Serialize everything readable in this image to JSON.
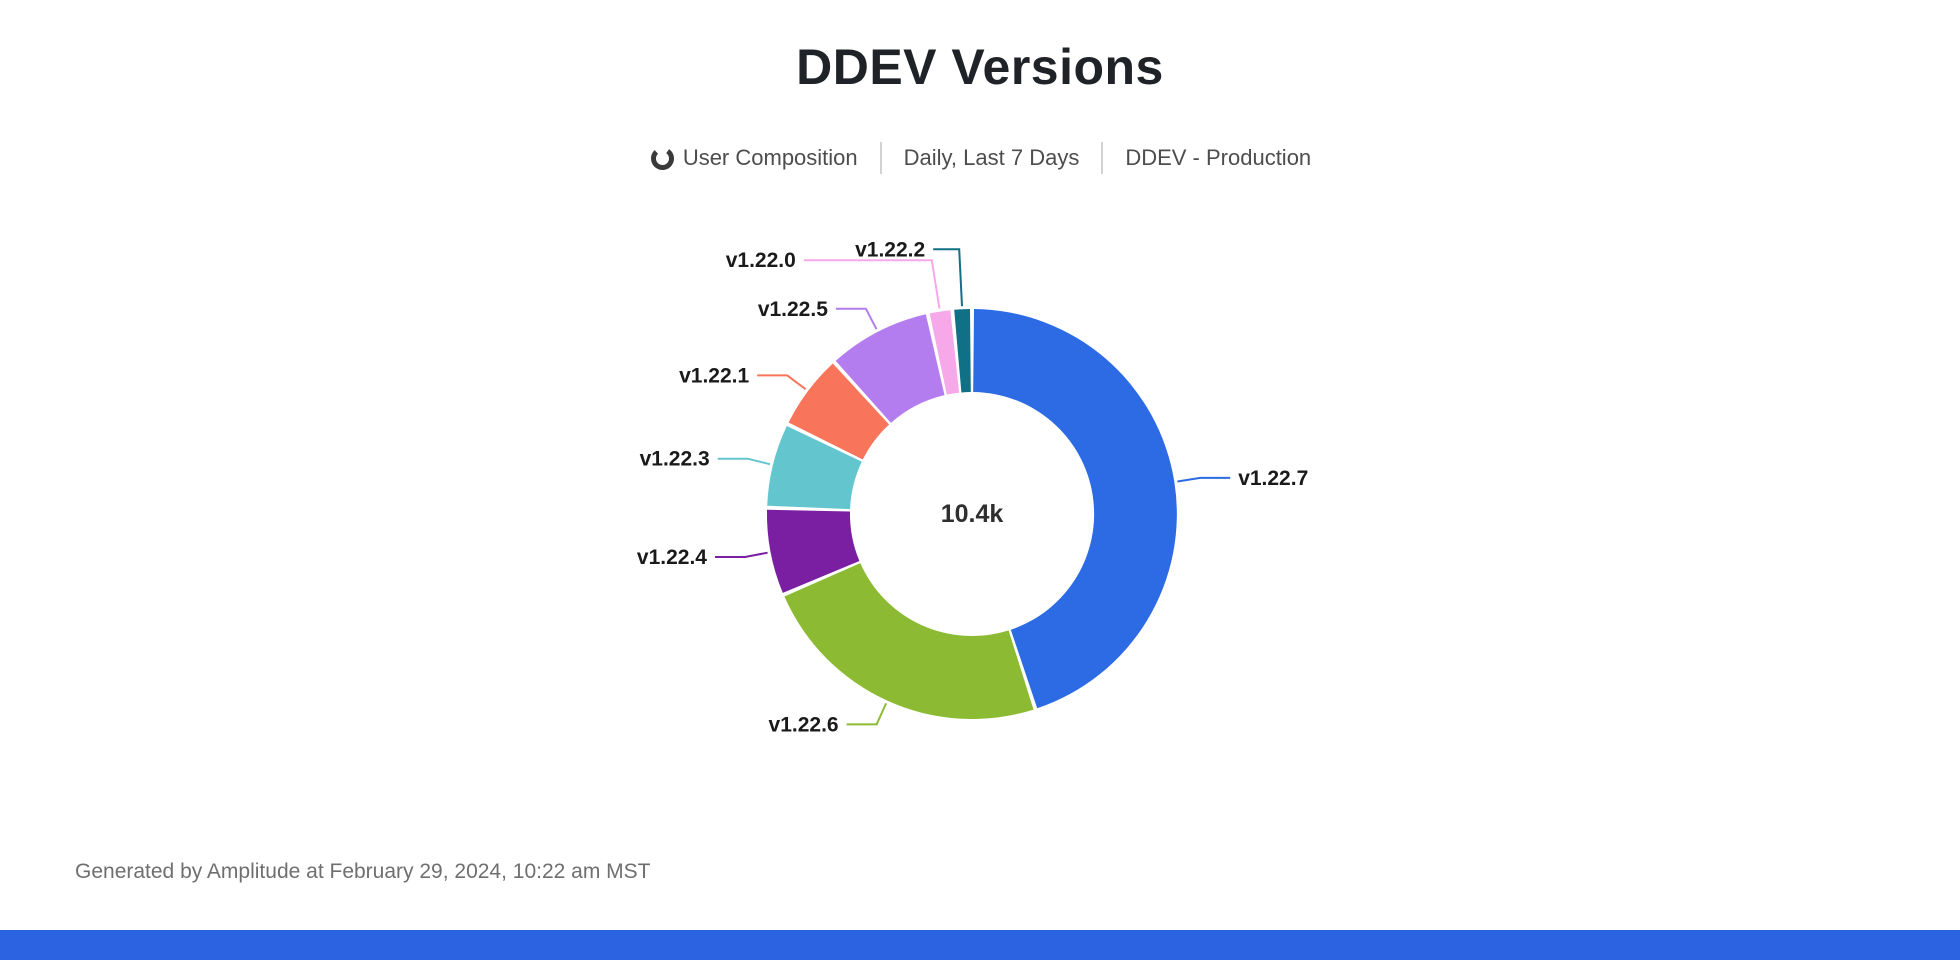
{
  "page": {
    "footer_text": "Generated by Amplitude at February 29, 2024, 10:22 am MST"
  },
  "header": {
    "chart_type_icon": "donut-chart-icon",
    "chart_type_label": "User Composition",
    "date_range_label": "Daily, Last 7 Days",
    "project_label": "DDEV - Production"
  },
  "colors": {
    "title_text": "#1f2328",
    "subtitle_text": "#4d4d4d",
    "footer_text": "#6f6f6f",
    "brand_bar": "#2b63e0",
    "icon_color": "#3a3a3a"
  },
  "chart_data": {
    "type": "pie",
    "subtype": "donut",
    "title": "DDEV Versions",
    "center_label": "10.4k",
    "total_label": "10.4k",
    "legend_position": "callout-labels",
    "slices": [
      {
        "label": "v1.22.7",
        "value": 4680,
        "percent_est": 45.0,
        "color": "#2c6be3"
      },
      {
        "label": "v1.22.6",
        "value": 2450,
        "percent_est": 23.6,
        "color": "#8cba33"
      },
      {
        "label": "v1.22.4",
        "value": 720,
        "percent_est": 6.9,
        "color": "#7b1fa2"
      },
      {
        "label": "v1.22.3",
        "value": 700,
        "percent_est": 6.7,
        "color": "#63c6cf"
      },
      {
        "label": "v1.22.1",
        "value": 630,
        "percent_est": 6.1,
        "color": "#f8755b"
      },
      {
        "label": "v1.22.5",
        "value": 860,
        "percent_est": 8.3,
        "color": "#b37df0"
      },
      {
        "label": "v1.22.0",
        "value": 200,
        "percent_est": 1.9,
        "color": "#f7a8e8"
      },
      {
        "label": "v1.22.2",
        "value": 160,
        "percent_est": 1.5,
        "color": "#0f7086"
      }
    ]
  }
}
